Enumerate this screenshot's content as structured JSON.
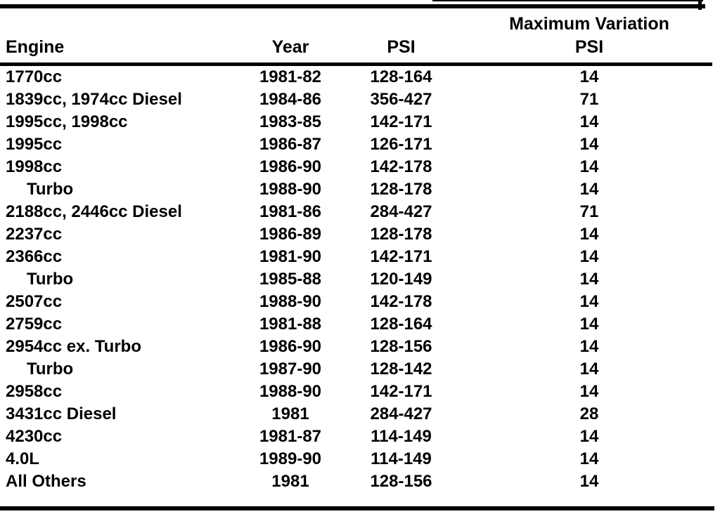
{
  "page": {
    "background": "#ffffff",
    "ink": "#000000"
  },
  "table": {
    "headers": {
      "engine": "Engine",
      "year": "Year",
      "psi": "PSI",
      "max_variation_line1": "Maximum Variation",
      "max_variation_line2": "PSI"
    },
    "rows": [
      {
        "engine": "1770cc",
        "indent": false,
        "year": "1981-82",
        "psi": "128-164",
        "max_variation_psi": "14"
      },
      {
        "engine": "1839cc, 1974cc Diesel",
        "indent": false,
        "year": "1984-86",
        "psi": "356-427",
        "max_variation_psi": "71"
      },
      {
        "engine": "1995cc, 1998cc",
        "indent": false,
        "year": "1983-85",
        "psi": "142-171",
        "max_variation_psi": "14"
      },
      {
        "engine": "1995cc",
        "indent": false,
        "year": "1986-87",
        "psi": "126-171",
        "max_variation_psi": "14"
      },
      {
        "engine": "1998cc",
        "indent": false,
        "year": "1986-90",
        "psi": "142-178",
        "max_variation_psi": "14"
      },
      {
        "engine": "Turbo",
        "indent": true,
        "year": "1988-90",
        "psi": "128-178",
        "max_variation_psi": "14"
      },
      {
        "engine": "2188cc, 2446cc Diesel",
        "indent": false,
        "year": "1981-86",
        "psi": "284-427",
        "max_variation_psi": "71"
      },
      {
        "engine": "2237cc",
        "indent": false,
        "year": "1986-89",
        "psi": "128-178",
        "max_variation_psi": "14"
      },
      {
        "engine": "2366cc",
        "indent": false,
        "year": "1981-90",
        "psi": "142-171",
        "max_variation_psi": "14"
      },
      {
        "engine": "Turbo",
        "indent": true,
        "year": "1985-88",
        "psi": "120-149",
        "max_variation_psi": "14"
      },
      {
        "engine": "2507cc",
        "indent": false,
        "year": "1988-90",
        "psi": "142-178",
        "max_variation_psi": "14"
      },
      {
        "engine": "2759cc",
        "indent": false,
        "year": "1981-88",
        "psi": "128-164",
        "max_variation_psi": "14"
      },
      {
        "engine": "2954cc ex. Turbo",
        "indent": false,
        "year": "1986-90",
        "psi": "128-156",
        "max_variation_psi": "14"
      },
      {
        "engine": "Turbo",
        "indent": true,
        "year": "1987-90",
        "psi": "128-142",
        "max_variation_psi": "14"
      },
      {
        "engine": "2958cc",
        "indent": false,
        "year": "1988-90",
        "psi": "142-171",
        "max_variation_psi": "14"
      },
      {
        "engine": "3431cc Diesel",
        "indent": false,
        "year": "1981",
        "psi": "284-427",
        "max_variation_psi": "28"
      },
      {
        "engine": "4230cc",
        "indent": false,
        "year": "1981-87",
        "psi": "114-149",
        "max_variation_psi": "14"
      },
      {
        "engine": "4.0L",
        "indent": false,
        "year": "1989-90",
        "psi": "114-149",
        "max_variation_psi": "14"
      },
      {
        "engine": "All Others",
        "indent": false,
        "year": "1981",
        "psi": "128-156",
        "max_variation_psi": "14"
      }
    ]
  }
}
